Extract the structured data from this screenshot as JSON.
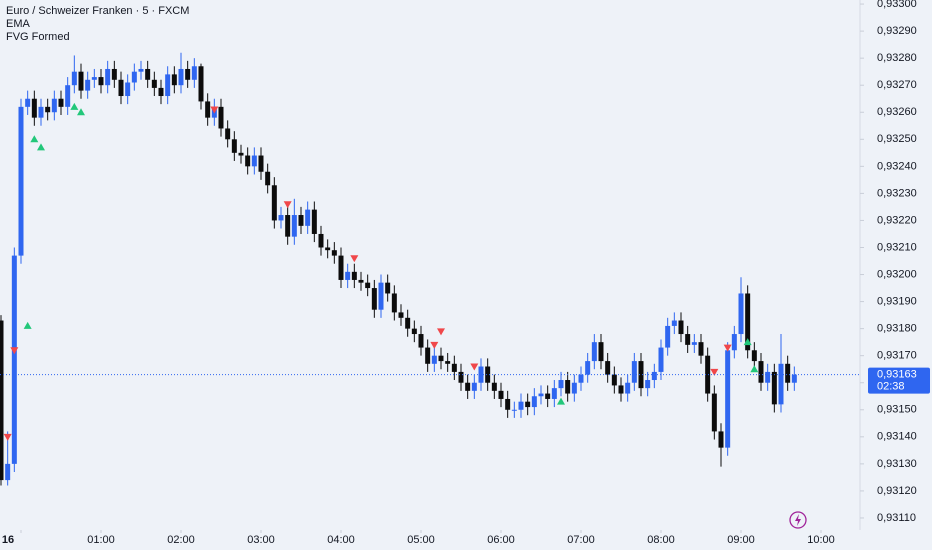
{
  "chart_data": {
    "type": "candlestick",
    "title": "Euro / Schweizer Franken · 5 · FXCM",
    "indicators": [
      "EMA",
      "FVG Formed"
    ],
    "x": [
      -15,
      -10,
      -5,
      0,
      5,
      10,
      15,
      20,
      25,
      30,
      35,
      40,
      45,
      50,
      55,
      60,
      65,
      70,
      75,
      80,
      85,
      90,
      95,
      100,
      105,
      110,
      115,
      120,
      125,
      130,
      135,
      140,
      145,
      150,
      155,
      160,
      165,
      170,
      175,
      180,
      185,
      190,
      195,
      200,
      205,
      210,
      215,
      220,
      225,
      230,
      235,
      240,
      245,
      250,
      255,
      260,
      265,
      270,
      275,
      280,
      285,
      290,
      295,
      300,
      305,
      310,
      315,
      320,
      325,
      330,
      335,
      340,
      345,
      350,
      355,
      360,
      365,
      370,
      375,
      380,
      385,
      390,
      395,
      400,
      405,
      410,
      415,
      420,
      425,
      430,
      435,
      440,
      445,
      450,
      455,
      460,
      465,
      470,
      475,
      480,
      485,
      490,
      495,
      500,
      505,
      510,
      515,
      520,
      525,
      530,
      535,
      540,
      545,
      550,
      555,
      560,
      565,
      570,
      575,
      580
    ],
    "open": [
      0.93183,
      0.93124,
      0.9313,
      0.93207,
      0.93262,
      0.93265,
      0.93258,
      0.93262,
      0.9326,
      0.93265,
      0.93262,
      0.9327,
      0.93275,
      0.93268,
      0.93272,
      0.93273,
      0.9327,
      0.93276,
      0.93272,
      0.93266,
      0.93271,
      0.93275,
      0.93276,
      0.93272,
      0.93269,
      0.93266,
      0.93274,
      0.9327,
      0.93276,
      0.93272,
      0.93277,
      0.93264,
      0.93258,
      0.93262,
      0.93254,
      0.9325,
      0.93245,
      0.93244,
      0.9324,
      0.93244,
      0.93238,
      0.93233,
      0.9322,
      0.93222,
      0.93214,
      0.93222,
      0.93218,
      0.93224,
      0.93215,
      0.9321,
      0.93209,
      0.93207,
      0.93198,
      0.93201,
      0.93198,
      0.93197,
      0.93195,
      0.93187,
      0.93197,
      0.93193,
      0.93186,
      0.93184,
      0.9318,
      0.93178,
      0.93173,
      0.93167,
      0.9317,
      0.93168,
      0.93167,
      0.93164,
      0.9316,
      0.93157,
      0.9316,
      0.93166,
      0.9316,
      0.93157,
      0.93154,
      0.9315,
      0.9315,
      0.93153,
      0.93151,
      0.93155,
      0.93156,
      0.93154,
      0.93158,
      0.93161,
      0.93156,
      0.9316,
      0.93163,
      0.93168,
      0.93175,
      0.93168,
      0.93163,
      0.93159,
      0.93156,
      0.9316,
      0.93168,
      0.93158,
      0.93161,
      0.93164,
      0.93173,
      0.93181,
      0.93183,
      0.93178,
      0.93174,
      0.93175,
      0.9317,
      0.93156,
      0.93142,
      0.93136,
      0.93172,
      0.93178,
      0.93193,
      0.93172,
      0.93168,
      0.9316,
      0.93164,
      0.93152,
      0.93167,
      0.9316
    ],
    "high": [
      0.93185,
      0.93142,
      0.9321,
      0.93265,
      0.93268,
      0.93268,
      0.93265,
      0.93265,
      0.93268,
      0.93268,
      0.93273,
      0.93281,
      0.93278,
      0.93275,
      0.93276,
      0.93276,
      0.93279,
      0.93279,
      0.93275,
      0.93274,
      0.93278,
      0.93279,
      0.93279,
      0.93275,
      0.93272,
      0.93277,
      0.93277,
      0.93282,
      0.93279,
      0.9328,
      0.93278,
      0.93267,
      0.93265,
      0.93265,
      0.93257,
      0.93253,
      0.93248,
      0.93247,
      0.93247,
      0.93247,
      0.93241,
      0.93236,
      0.93225,
      0.93225,
      0.93228,
      0.93225,
      0.93227,
      0.93227,
      0.93218,
      0.93213,
      0.93212,
      0.9321,
      0.93204,
      0.93204,
      0.93201,
      0.932,
      0.93198,
      0.932,
      0.932,
      0.93196,
      0.93189,
      0.93187,
      0.93183,
      0.93181,
      0.93176,
      0.93173,
      0.93173,
      0.93171,
      0.9317,
      0.93167,
      0.93163,
      0.93163,
      0.93169,
      0.93169,
      0.93163,
      0.9316,
      0.93157,
      0.93153,
      0.93156,
      0.93156,
      0.93158,
      0.93159,
      0.93159,
      0.93161,
      0.93164,
      0.93164,
      0.93163,
      0.93166,
      0.93171,
      0.93178,
      0.93178,
      0.93171,
      0.93166,
      0.93162,
      0.93163,
      0.93171,
      0.93171,
      0.93164,
      0.93167,
      0.93176,
      0.93184,
      0.93186,
      0.93186,
      0.93181,
      0.93178,
      0.93178,
      0.93173,
      0.93159,
      0.93145,
      0.93175,
      0.93181,
      0.93199,
      0.93196,
      0.93175,
      0.93171,
      0.93167,
      0.93167,
      0.93178,
      0.9317,
      0.93166
    ],
    "low": [
      0.93122,
      0.93122,
      0.93127,
      0.93204,
      0.93259,
      0.93255,
      0.93255,
      0.93257,
      0.93257,
      0.93259,
      0.93259,
      0.93267,
      0.93265,
      0.93265,
      0.93269,
      0.93267,
      0.93267,
      0.93269,
      0.93263,
      0.93263,
      0.93268,
      0.93272,
      0.93269,
      0.93266,
      0.93263,
      0.93263,
      0.93267,
      0.93267,
      0.93269,
      0.93269,
      0.93261,
      0.93255,
      0.93255,
      0.93251,
      0.93247,
      0.93242,
      0.93241,
      0.93237,
      0.93237,
      0.93235,
      0.9323,
      0.93217,
      0.93217,
      0.93211,
      0.93211,
      0.93215,
      0.93215,
      0.93212,
      0.93207,
      0.93206,
      0.93204,
      0.93195,
      0.93195,
      0.93195,
      0.93194,
      0.93192,
      0.93184,
      0.93184,
      0.9319,
      0.93183,
      0.93181,
      0.93177,
      0.93175,
      0.9317,
      0.93164,
      0.93164,
      0.93165,
      0.93164,
      0.93161,
      0.93157,
      0.93154,
      0.93154,
      0.93157,
      0.93157,
      0.93154,
      0.93151,
      0.93147,
      0.93147,
      0.93147,
      0.93148,
      0.93148,
      0.93152,
      0.93151,
      0.93151,
      0.93155,
      0.93153,
      0.93153,
      0.93157,
      0.9316,
      0.93165,
      0.93165,
      0.9316,
      0.93156,
      0.93153,
      0.93153,
      0.93157,
      0.93155,
      0.93155,
      0.93158,
      0.93161,
      0.9317,
      0.93178,
      0.93175,
      0.93171,
      0.93171,
      0.93167,
      0.93153,
      0.93139,
      0.93129,
      0.93133,
      0.93169,
      0.93175,
      0.93169,
      0.93165,
      0.93157,
      0.93157,
      0.93149,
      0.93149,
      0.93157,
      0.93157
    ],
    "close": [
      0.93124,
      0.9313,
      0.93207,
      0.93262,
      0.93265,
      0.93258,
      0.93262,
      0.9326,
      0.93265,
      0.93262,
      0.9327,
      0.93275,
      0.93268,
      0.93272,
      0.93273,
      0.9327,
      0.93276,
      0.93272,
      0.93266,
      0.93271,
      0.93275,
      0.93276,
      0.93272,
      0.93269,
      0.93266,
      0.93274,
      0.9327,
      0.93276,
      0.93272,
      0.93277,
      0.93264,
      0.93258,
      0.93262,
      0.93254,
      0.9325,
      0.93245,
      0.93244,
      0.9324,
      0.93244,
      0.93238,
      0.93233,
      0.9322,
      0.93222,
      0.93214,
      0.93222,
      0.93218,
      0.93224,
      0.93215,
      0.9321,
      0.93209,
      0.93207,
      0.93198,
      0.93201,
      0.93198,
      0.93197,
      0.93195,
      0.93187,
      0.93197,
      0.93193,
      0.93186,
      0.93184,
      0.9318,
      0.93178,
      0.93173,
      0.93167,
      0.9317,
      0.93168,
      0.93167,
      0.93164,
      0.9316,
      0.93157,
      0.9316,
      0.93166,
      0.9316,
      0.93157,
      0.93154,
      0.9315,
      0.9315,
      0.93153,
      0.93151,
      0.93155,
      0.93156,
      0.93154,
      0.93158,
      0.93161,
      0.93156,
      0.9316,
      0.93163,
      0.93168,
      0.93175,
      0.93168,
      0.93163,
      0.93159,
      0.93156,
      0.9316,
      0.93168,
      0.93158,
      0.93161,
      0.93164,
      0.93173,
      0.93181,
      0.93183,
      0.93178,
      0.93174,
      0.93175,
      0.9317,
      0.93156,
      0.93142,
      0.93136,
      0.93172,
      0.93178,
      0.93193,
      0.93172,
      0.93168,
      0.9316,
      0.93164,
      0.93152,
      0.93167,
      0.9316,
      0.93163
    ],
    "up_color": "#2f66f0",
    "down_color": "#0c0c0c",
    "xlim": [
      -15.75,
      629.25
    ],
    "ylim": [
      0.931074,
      0.933015
    ],
    "xticks": [
      {
        "value": 0,
        "label": "16"
      },
      {
        "value": 60,
        "label": "01:00"
      },
      {
        "value": 120,
        "label": "02:00"
      },
      {
        "value": 180,
        "label": "03:00"
      },
      {
        "value": 240,
        "label": "04:00"
      },
      {
        "value": 300,
        "label": "05:00"
      },
      {
        "value": 360,
        "label": "06:00"
      },
      {
        "value": 420,
        "label": "07:00"
      },
      {
        "value": 480,
        "label": "08:00"
      },
      {
        "value": 540,
        "label": "09:00"
      },
      {
        "value": 600,
        "label": "10:00"
      }
    ],
    "yticks": [
      {
        "value": 0.933,
        "label": "0,93300"
      },
      {
        "value": 0.9329,
        "label": "0,93290"
      },
      {
        "value": 0.9328,
        "label": "0,93280"
      },
      {
        "value": 0.9327,
        "label": "0,93270"
      },
      {
        "value": 0.9326,
        "label": "0,93260"
      },
      {
        "value": 0.9325,
        "label": "0,93250"
      },
      {
        "value": 0.9324,
        "label": "0,93240"
      },
      {
        "value": 0.9323,
        "label": "0,93230"
      },
      {
        "value": 0.9322,
        "label": "0,93220"
      },
      {
        "value": 0.9321,
        "label": "0,93210"
      },
      {
        "value": 0.932,
        "label": "0,93200"
      },
      {
        "value": 0.9319,
        "label": "0,93190"
      },
      {
        "value": 0.9318,
        "label": "0,93180"
      },
      {
        "value": 0.9317,
        "label": "0,93170"
      },
      {
        "value": 0.9316,
        "label": "0,93160"
      },
      {
        "value": 0.9315,
        "label": "0,93150"
      },
      {
        "value": 0.9314,
        "label": "0,93140"
      },
      {
        "value": 0.9313,
        "label": "0,93130"
      },
      {
        "value": 0.9312,
        "label": "0,93120"
      },
      {
        "value": 0.9311,
        "label": "0,93110"
      }
    ],
    "last_price": {
      "value": 0.93163,
      "label": "0,93163"
    },
    "countdown": "02:38",
    "markers": [
      {
        "x": 5,
        "y": 0.93181,
        "direction": "up"
      },
      {
        "x": 10,
        "y": 0.9325,
        "direction": "up"
      },
      {
        "x": 15,
        "y": 0.93247,
        "direction": "up"
      },
      {
        "x": 40,
        "y": 0.93262,
        "direction": "up"
      },
      {
        "x": 45,
        "y": 0.9326,
        "direction": "up"
      },
      {
        "x": 405,
        "y": 0.93153,
        "direction": "up"
      },
      {
        "x": 545,
        "y": 0.93175,
        "direction": "up"
      },
      {
        "x": 550,
        "y": 0.93165,
        "direction": "up"
      },
      {
        "x": -10,
        "y": 0.9314,
        "direction": "down"
      },
      {
        "x": -5,
        "y": 0.93172,
        "direction": "down"
      },
      {
        "x": 145,
        "y": 0.93261,
        "direction": "down"
      },
      {
        "x": 200,
        "y": 0.93226,
        "direction": "down"
      },
      {
        "x": 250,
        "y": 0.93206,
        "direction": "down"
      },
      {
        "x": 310,
        "y": 0.93174,
        "direction": "down"
      },
      {
        "x": 315,
        "y": 0.93179,
        "direction": "down"
      },
      {
        "x": 340,
        "y": 0.93166,
        "direction": "down"
      },
      {
        "x": 520,
        "y": 0.93164,
        "direction": "down"
      },
      {
        "x": 530,
        "y": 0.93173,
        "direction": "down"
      }
    ],
    "marker_colors": {
      "up": "#22c77a",
      "down": "#f0474a"
    },
    "grid": false
  }
}
